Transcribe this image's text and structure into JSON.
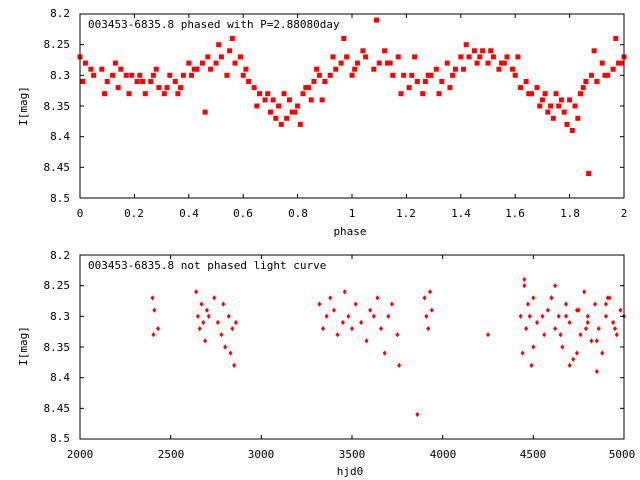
{
  "chart_data": [
    {
      "type": "scatter",
      "title": "003453-6835.8 phased with P=2.88080day",
      "xlabel": "phase",
      "ylabel": "I[mag]",
      "xlim": [
        0,
        2
      ],
      "ylim": [
        8.5,
        8.2
      ],
      "y_inverted": true,
      "x_ticks": [
        "0",
        "0.2",
        "0.4",
        "0.6",
        "0.8",
        "1",
        "1.2",
        "1.4",
        "1.6",
        "1.8",
        "2"
      ],
      "y_ticks": [
        "8.2",
        "8.25",
        "8.3",
        "8.35",
        "8.4",
        "8.45",
        "8.5"
      ],
      "marker": "filled-square",
      "color": "#ff0000",
      "grid": false,
      "series": [
        {
          "x": [
            0.0,
            0.02,
            0.05,
            0.08,
            0.1,
            0.12,
            0.14,
            0.15,
            0.17,
            0.19,
            0.21,
            0.22,
            0.24,
            0.26,
            0.27,
            0.29,
            0.31,
            0.33,
            0.35,
            0.37,
            0.38,
            0.4,
            0.41,
            0.43,
            0.45,
            0.47,
            0.48,
            0.5,
            0.52,
            0.54,
            0.55,
            0.57,
            0.59,
            0.6,
            0.62,
            0.64,
            0.66,
            0.68,
            0.7,
            0.71,
            0.73,
            0.75,
            0.77,
            0.78,
            0.8,
            0.82,
            0.84,
            0.86,
            0.88,
            0.9,
            0.92,
            0.94,
            0.96,
            0.98,
            1.0,
            1.02,
            1.05,
            1.08,
            1.1,
            1.12,
            1.14,
            1.15,
            1.17,
            1.19,
            1.21,
            1.22,
            1.24,
            1.26,
            1.27,
            1.29,
            1.31,
            1.33,
            1.35,
            1.37,
            1.38,
            1.4,
            1.41,
            1.43,
            1.45,
            1.47,
            1.48,
            1.5,
            1.52,
            1.54,
            1.55,
            1.57,
            1.59,
            1.6,
            1.62,
            1.64,
            1.66,
            1.68,
            1.7,
            1.71,
            1.73,
            1.75,
            1.77,
            1.78,
            1.8,
            1.82,
            1.84,
            1.86,
            1.87,
            1.88,
            1.9,
            1.92,
            1.94,
            1.96,
            1.98,
            2.0,
            0.01,
            0.04,
            0.09,
            0.13,
            0.18,
            0.23,
            0.28,
            0.32,
            0.36,
            0.42,
            0.46,
            0.51,
            0.56,
            0.61,
            0.65,
            0.69,
            0.72,
            0.74,
            0.76,
            0.79,
            0.81,
            0.83,
            0.85,
            0.87,
            0.89,
            0.93,
            0.97,
            1.01,
            1.04,
            1.09,
            1.13,
            1.18,
            1.23,
            1.28,
            1.32,
            1.36,
            1.42,
            1.46,
            1.51,
            1.56,
            1.61,
            1.65,
            1.69,
            1.72,
            1.74,
            1.76,
            1.79,
            1.81,
            1.83,
            1.85,
            1.89,
            1.93,
            1.97,
            1.99
          ],
          "y": [
            8.27,
            8.28,
            8.3,
            8.29,
            8.31,
            8.3,
            8.32,
            8.29,
            8.3,
            8.3,
            8.31,
            8.3,
            8.33,
            8.31,
            8.3,
            8.32,
            8.33,
            8.3,
            8.31,
            8.32,
            8.3,
            8.28,
            8.3,
            8.29,
            8.28,
            8.27,
            8.29,
            8.28,
            8.27,
            8.3,
            8.26,
            8.28,
            8.27,
            8.3,
            8.31,
            8.32,
            8.33,
            8.34,
            8.36,
            8.34,
            8.35,
            8.33,
            8.34,
            8.36,
            8.35,
            8.33,
            8.32,
            8.31,
            8.3,
            8.31,
            8.3,
            8.29,
            8.28,
            8.27,
            8.3,
            8.28,
            8.27,
            8.29,
            8.28,
            8.26,
            8.28,
            8.3,
            8.27,
            8.3,
            8.32,
            8.3,
            8.31,
            8.33,
            8.31,
            8.3,
            8.29,
            8.31,
            8.28,
            8.3,
            8.29,
            8.27,
            8.29,
            8.27,
            8.26,
            8.27,
            8.26,
            8.28,
            8.27,
            8.29,
            8.28,
            8.27,
            8.29,
            8.3,
            8.32,
            8.31,
            8.33,
            8.32,
            8.34,
            8.33,
            8.35,
            8.33,
            8.34,
            8.36,
            8.34,
            8.35,
            8.33,
            8.31,
            8.46,
            8.3,
            8.31,
            8.28,
            8.3,
            8.29,
            8.28,
            8.27,
            8.31,
            8.29,
            8.33,
            8.28,
            8.33,
            8.31,
            8.29,
            8.32,
            8.33,
            8.29,
            8.36,
            8.25,
            8.24,
            8.29,
            8.35,
            8.33,
            8.37,
            8.38,
            8.37,
            8.36,
            8.38,
            8.32,
            8.34,
            8.29,
            8.34,
            8.27,
            8.24,
            8.29,
            8.26,
            8.21,
            8.28,
            8.33,
            8.27,
            8.3,
            8.33,
            8.32,
            8.25,
            8.28,
            8.26,
            8.28,
            8.27,
            8.33,
            8.35,
            8.36,
            8.37,
            8.35,
            8.38,
            8.39,
            8.37,
            8.32,
            8.26,
            8.3,
            8.24,
            8.28
          ]
        }
      ]
    },
    {
      "type": "scatter",
      "title": "003453-6835.8 not phased light curve",
      "xlabel": "hjd0",
      "ylabel": "I[mag]",
      "xlim": [
        2000,
        5000
      ],
      "ylim": [
        8.5,
        8.2
      ],
      "y_inverted": true,
      "x_ticks": [
        "2000",
        "2500",
        "3000",
        "3500",
        "4000",
        "4500",
        "5000"
      ],
      "y_ticks": [
        "8.2",
        "8.25",
        "8.3",
        "8.35",
        "8.4",
        "8.45",
        "8.5"
      ],
      "marker": "filled-diamond",
      "color": "#ff0000",
      "grid": false,
      "series": [
        {
          "x": [
            2400,
            2405,
            2410,
            2430,
            2640,
            2650,
            2660,
            2670,
            2680,
            2690,
            2700,
            2710,
            2740,
            2760,
            2780,
            2790,
            2800,
            2820,
            2830,
            2840,
            2850,
            2860,
            3320,
            3340,
            3360,
            3380,
            3400,
            3420,
            3450,
            3460,
            3480,
            3500,
            3520,
            3550,
            3580,
            3600,
            3620,
            3640,
            3660,
            3680,
            3700,
            3720,
            3750,
            3760,
            3860,
            3900,
            3910,
            3920,
            3930,
            3940,
            4250,
            4430,
            4440,
            4450,
            4460,
            4470,
            4480,
            4490,
            4500,
            4520,
            4560,
            4580,
            4600,
            4620,
            4640,
            4660,
            4680,
            4700,
            4720,
            4740,
            4760,
            4780,
            4800,
            4820,
            4840,
            4860,
            4880,
            4900,
            4920,
            4940,
            4960,
            4980,
            5000,
            4450,
            4500,
            4550,
            4600,
            4650,
            4700,
            4750,
            4800,
            4850,
            4900,
            4950,
            4620,
            4680,
            4740,
            4790,
            4850,
            4910
          ],
          "y": [
            8.27,
            8.33,
            8.29,
            8.32,
            8.26,
            8.3,
            8.32,
            8.28,
            8.31,
            8.34,
            8.29,
            8.3,
            8.27,
            8.31,
            8.33,
            8.28,
            8.35,
            8.3,
            8.36,
            8.32,
            8.38,
            8.31,
            8.28,
            8.32,
            8.3,
            8.27,
            8.29,
            8.33,
            8.31,
            8.26,
            8.3,
            8.32,
            8.28,
            8.31,
            8.34,
            8.29,
            8.3,
            8.27,
            8.32,
            8.36,
            8.3,
            8.28,
            8.33,
            8.38,
            8.46,
            8.27,
            8.3,
            8.32,
            8.26,
            8.29,
            8.33,
            8.3,
            8.36,
            8.25,
            8.32,
            8.28,
            8.3,
            8.38,
            8.27,
            8.31,
            8.33,
            8.29,
            8.27,
            8.32,
            8.3,
            8.35,
            8.28,
            8.31,
            8.37,
            8.29,
            8.33,
            8.26,
            8.3,
            8.34,
            8.28,
            8.32,
            8.36,
            8.3,
            8.27,
            8.31,
            8.33,
            8.29,
            8.3,
            8.24,
            8.35,
            8.3,
            8.27,
            8.33,
            8.38,
            8.29,
            8.31,
            8.34,
            8.28,
            8.32,
            8.25,
            8.3,
            8.36,
            8.32,
            8.39,
            8.27
          ]
        }
      ]
    }
  ]
}
